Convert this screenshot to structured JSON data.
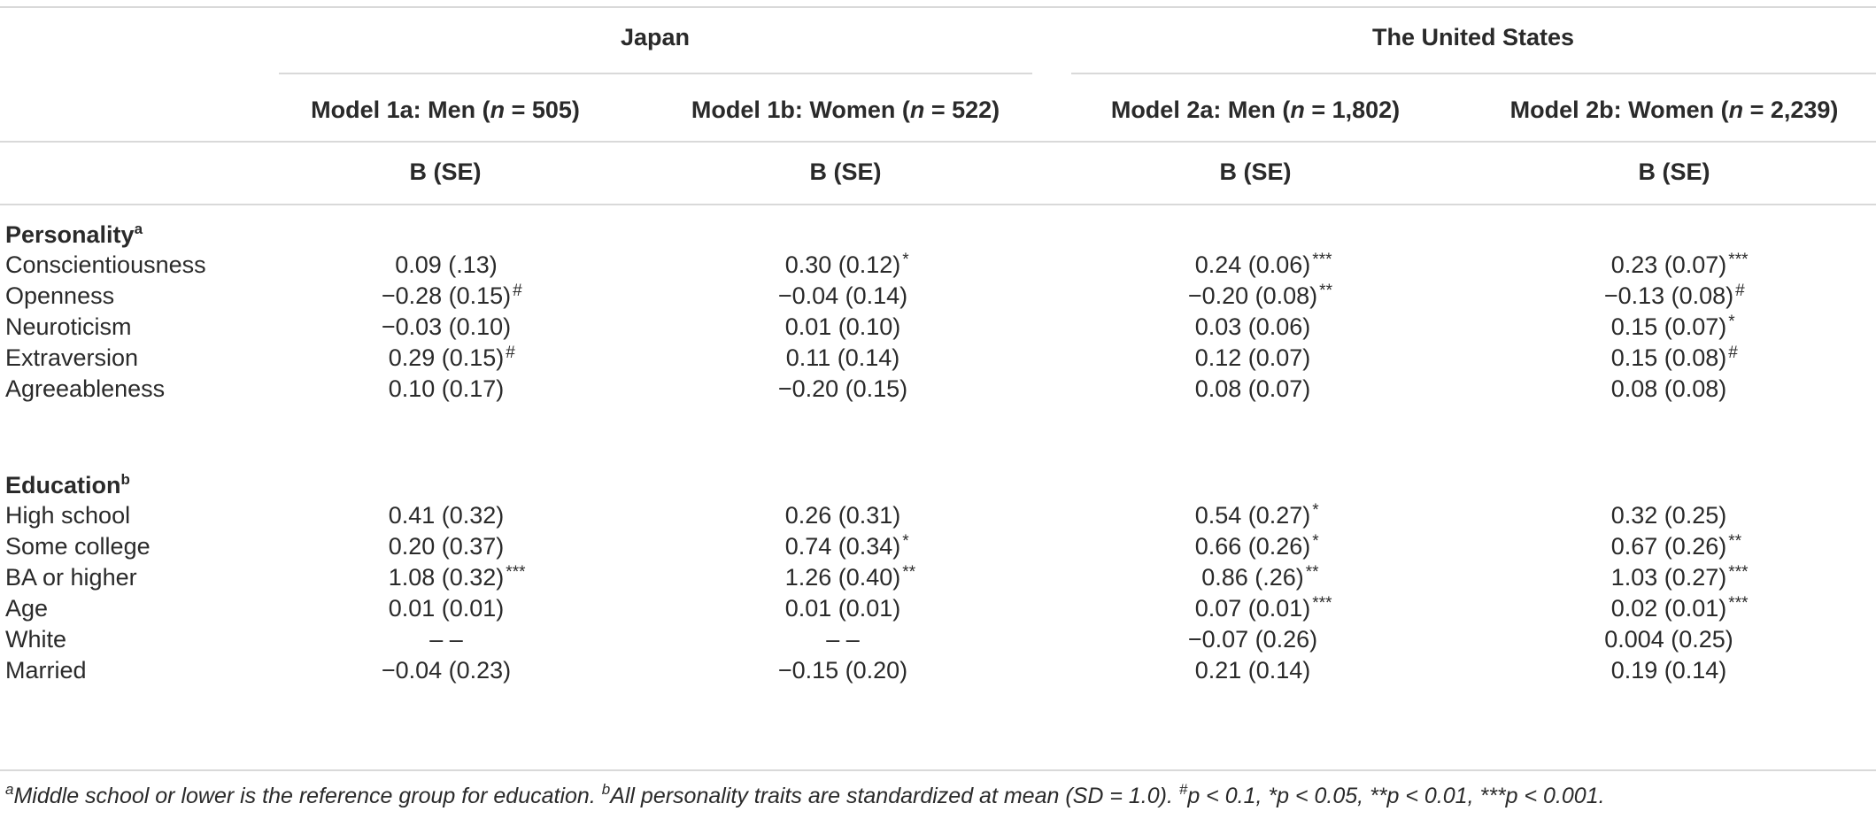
{
  "groups": {
    "japan": "Japan",
    "us": "The United States"
  },
  "models": [
    {
      "prefix": "Model 1a: Men (",
      "n_label": "n",
      "suffix": " = 505)"
    },
    {
      "prefix": "Model 1b: Women (",
      "n_label": "n",
      "suffix": " = 522)"
    },
    {
      "prefix": "Model 2a: Men (",
      "n_label": "n",
      "suffix": " = 1,802)"
    },
    {
      "prefix": "Model 2b: Women (",
      "n_label": "n",
      "suffix": " = 2,239)"
    }
  ],
  "stat_header": "B (SE)",
  "sections": {
    "personality": {
      "label": "Personality",
      "note": "a"
    },
    "education": {
      "label": "Education",
      "note": "b"
    }
  },
  "rows": [
    {
      "label": "Conscientiousness",
      "cells": [
        {
          "v": "0.09 (.13)",
          "s": ""
        },
        {
          "v": "0.30 (0.12)",
          "s": "*"
        },
        {
          "v": "0.24 (0.06)",
          "s": "***"
        },
        {
          "v": "0.23 (0.07)",
          "s": "***"
        }
      ]
    },
    {
      "label": "Openness",
      "cells": [
        {
          "v": "−0.28 (0.15)",
          "s": "#"
        },
        {
          "v": "−0.04 (0.14)",
          "s": ""
        },
        {
          "v": "−0.20 (0.08)",
          "s": "**"
        },
        {
          "v": "−0.13 (0.08)",
          "s": "#"
        }
      ]
    },
    {
      "label": "Neuroticism",
      "cells": [
        {
          "v": "−0.03 (0.10)",
          "s": ""
        },
        {
          "v": "0.01 (0.10)",
          "s": ""
        },
        {
          "v": "0.03 (0.06)",
          "s": ""
        },
        {
          "v": "0.15 (0.07)",
          "s": "*"
        }
      ]
    },
    {
      "label": "Extraversion",
      "cells": [
        {
          "v": "0.29 (0.15)",
          "s": "#"
        },
        {
          "v": "0.11 (0.14)",
          "s": ""
        },
        {
          "v": "0.12 (0.07)",
          "s": ""
        },
        {
          "v": "0.15 (0.08)",
          "s": "#"
        }
      ]
    },
    {
      "label": "Agreeableness",
      "cells": [
        {
          "v": "0.10 (0.17)",
          "s": ""
        },
        {
          "v": "−0.20 (0.15)",
          "s": ""
        },
        {
          "v": "0.08 (0.07)",
          "s": ""
        },
        {
          "v": "0.08 (0.08)",
          "s": ""
        }
      ]
    },
    {
      "label": "High school",
      "cells": [
        {
          "v": "0.41 (0.32)",
          "s": ""
        },
        {
          "v": "0.26 (0.31)",
          "s": ""
        },
        {
          "v": "0.54 (0.27)",
          "s": "*"
        },
        {
          "v": "0.32 (0.25)",
          "s": ""
        }
      ]
    },
    {
      "label": "Some college",
      "cells": [
        {
          "v": "0.20 (0.37)",
          "s": ""
        },
        {
          "v": "0.74 (0.34)",
          "s": "*"
        },
        {
          "v": "0.66 (0.26)",
          "s": "*"
        },
        {
          "v": "0.67 (0.26)",
          "s": "**"
        }
      ]
    },
    {
      "label": "BA or higher",
      "cells": [
        {
          "v": "1.08 (0.32)",
          "s": "***"
        },
        {
          "v": "1.26 (0.40)",
          "s": "**"
        },
        {
          "v": "0.86 (.26)",
          "s": "**"
        },
        {
          "v": "1.03 (0.27)",
          "s": "***"
        }
      ]
    },
    {
      "label": "Age",
      "cells": [
        {
          "v": "0.01 (0.01)",
          "s": ""
        },
        {
          "v": "0.01 (0.01)",
          "s": ""
        },
        {
          "v": "0.07 (0.01)",
          "s": "***"
        },
        {
          "v": "0.02 (0.01)",
          "s": "***"
        }
      ]
    },
    {
      "label": "White",
      "cells": [
        {
          "v": "– –",
          "s": ""
        },
        {
          "v": "– –",
          "s": ""
        },
        {
          "v": "−0.07 (0.26)",
          "s": ""
        },
        {
          "v": "0.004 (0.25)",
          "s": ""
        }
      ]
    },
    {
      "label": "Married",
      "cells": [
        {
          "v": "−0.04 (0.23)",
          "s": ""
        },
        {
          "v": "−0.15 (0.20)",
          "s": ""
        },
        {
          "v": "0.21 (0.14)",
          "s": ""
        },
        {
          "v": "0.19 (0.14)",
          "s": ""
        }
      ]
    }
  ],
  "footnote": {
    "a_mark": "a",
    "a_text": "Middle school or lower is the reference group for education. ",
    "b_mark": "b",
    "b_text": "All personality traits are standardized at mean (SD = 1.0). ",
    "p_hash": "p < 0.1, ",
    "p_star1": "*p < 0.05, ",
    "p_star2": "**p < 0.01, ",
    "p_star3": "***p < 0.001."
  },
  "hash_mark": "#"
}
